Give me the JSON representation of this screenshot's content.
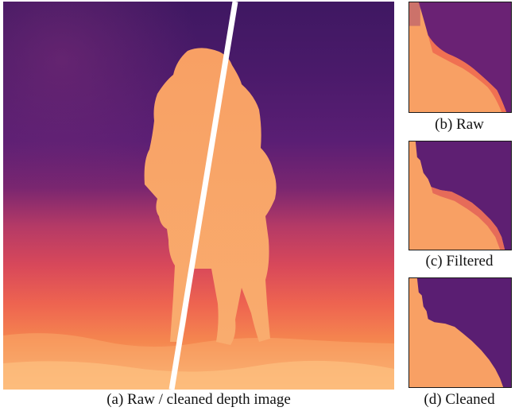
{
  "figure": {
    "main_caption": "(a) Raw / cleaned depth image",
    "crops": [
      {
        "caption": "(b) Raw"
      },
      {
        "caption": "(c) Filtered"
      },
      {
        "caption": "(d) Cleaned"
      }
    ]
  },
  "colors": {
    "far_dark_purple": "#3c1660",
    "far_purple": "#5d1f72",
    "mid_magenta": "#9c2f6c",
    "mid_red": "#d5475a",
    "near_orange": "#f2714a",
    "near_salmon": "#f79660",
    "nearest_peach": "#fdbf7c",
    "foreground_figure": "#f9a265",
    "divider_line": "#ffffff"
  }
}
